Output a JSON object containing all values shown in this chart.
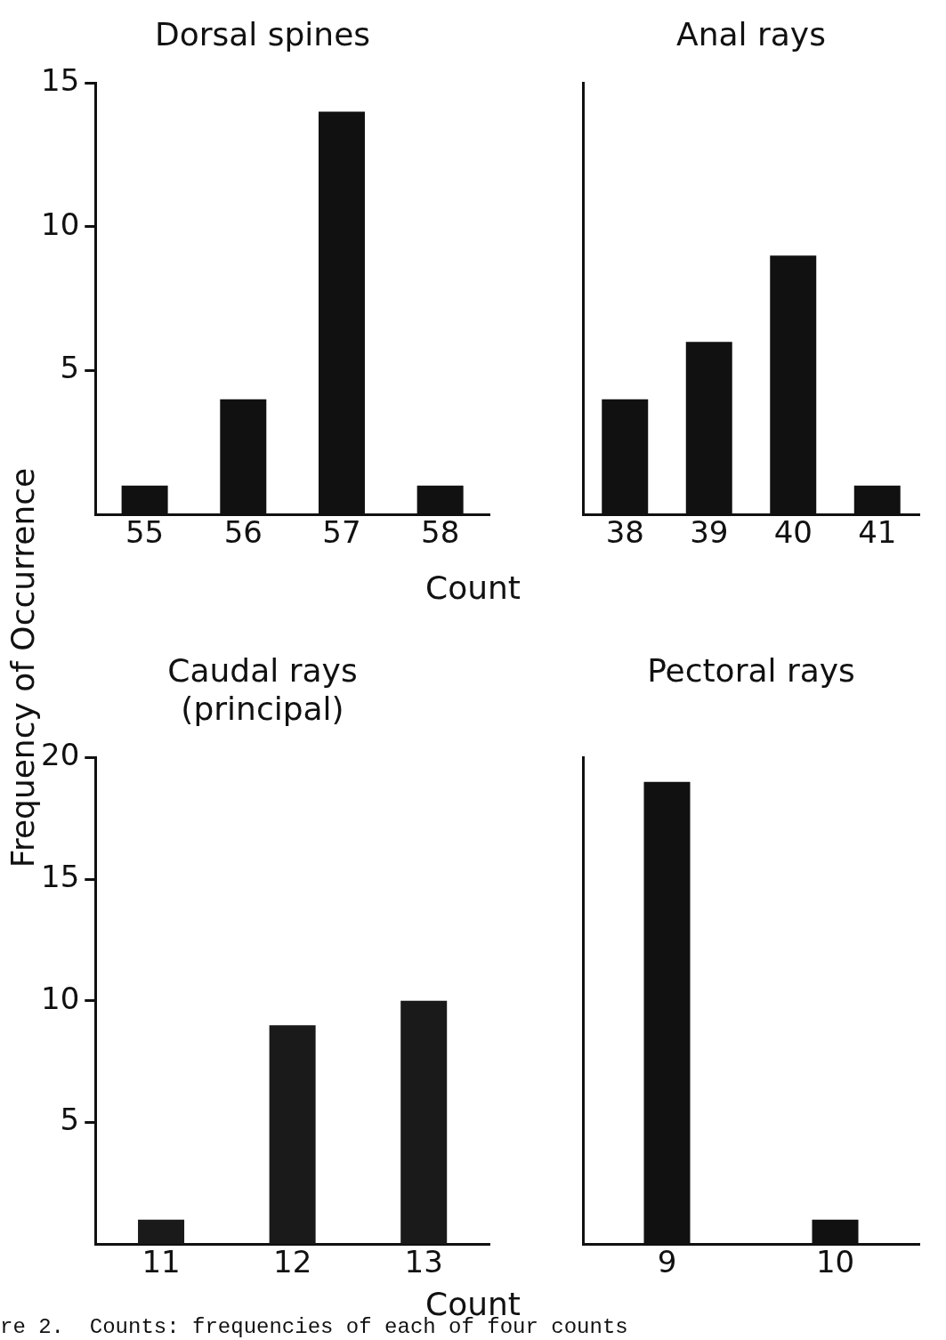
{
  "chart_data": [
    {
      "type": "bar",
      "title": "Dorsal spines",
      "ylabel": "Frequency of Occurrence",
      "xlabel": "Count",
      "categories": [
        "55",
        "56",
        "57",
        "58"
      ],
      "values": [
        1,
        4,
        14,
        1
      ],
      "color": "#111111",
      "ylim": [
        0,
        15
      ],
      "yticks": [
        5,
        10,
        15
      ],
      "grid": false,
      "legend": false
    },
    {
      "type": "bar",
      "title": "Anal rays",
      "categories": [
        "38",
        "39",
        "40",
        "41"
      ],
      "values": [
        4,
        6,
        9,
        1
      ],
      "color": "#111111",
      "ylim": [
        0,
        15
      ],
      "grid": false,
      "legend": false,
      "tick_labels": "x"
    },
    {
      "type": "bar",
      "title": "Caudal rays (principal)",
      "xlabel": "Count",
      "categories": [
        "11",
        "12",
        "13"
      ],
      "values": [
        1,
        9,
        10
      ],
      "color": "#1a1a1a",
      "ylim": [
        0,
        20
      ],
      "yticks": [
        5,
        10,
        15,
        20
      ],
      "grid": false,
      "legend": false,
      "annotations": [
        "re 2.  Counts: frequencies of each of four counts"
      ]
    },
    {
      "type": "bar",
      "title": "Pectoral rays",
      "categories": [
        "9",
        "10"
      ],
      "values": [
        19,
        1
      ],
      "color": "#111111",
      "ylim": [
        0,
        20
      ],
      "grid": false,
      "legend": false,
      "tick_labels": "x"
    }
  ]
}
